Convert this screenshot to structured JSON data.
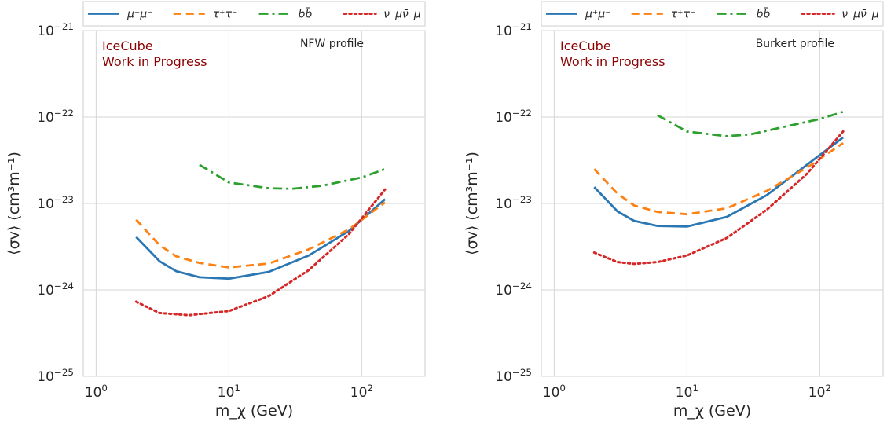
{
  "chart_data": [
    {
      "type": "line",
      "title": "",
      "annotation": "NFW profile",
      "watermark": [
        "IceCube",
        "Work in Progress"
      ],
      "xlabel": "m_χ (GeV)",
      "ylabel": "⟨σv⟩ (cm³m⁻¹)",
      "xscale": "log",
      "yscale": "log",
      "xlim": [
        0.8,
        300
      ],
      "ylim": [
        1e-25,
        1e-21
      ],
      "xticks": [
        {
          "value": 1,
          "base": "10",
          "exp": "0"
        },
        {
          "value": 10,
          "base": "10",
          "exp": "1"
        },
        {
          "value": 100,
          "base": "10",
          "exp": "2"
        }
      ],
      "yticks": [
        {
          "value": 1e-25,
          "base": "10",
          "exp": "−25"
        },
        {
          "value": 1e-24,
          "base": "10",
          "exp": "−24"
        },
        {
          "value": 1e-23,
          "base": "10",
          "exp": "−23"
        },
        {
          "value": 1e-22,
          "base": "10",
          "exp": "−22"
        },
        {
          "value": 1e-21,
          "base": "10",
          "exp": "−21"
        }
      ],
      "grid": true,
      "legend": "top (outside, single row)",
      "series": [
        {
          "name": "μ⁺μ⁻",
          "style": "solid",
          "color": "#2a77b4",
          "x": [
            2,
            3,
            4,
            6,
            10,
            20,
            40,
            80,
            150
          ],
          "y": [
            4.1e-24,
            2.15e-24,
            1.65e-24,
            1.4e-24,
            1.35e-24,
            1.62e-24,
            2.5e-24,
            4.8e-24,
            1.12e-23
          ]
        },
        {
          "name": "τ⁺τ⁻",
          "style": "dashed",
          "color": "#fd8012",
          "x": [
            2,
            3,
            4,
            6,
            10,
            20,
            40,
            80,
            150
          ],
          "y": [
            6.5e-24,
            3.3e-24,
            2.45e-24,
            2.05e-24,
            1.82e-24,
            2.02e-24,
            2.95e-24,
            5e-24,
            1.03e-23
          ]
        },
        {
          "name": "bb̄",
          "style": "dashdot",
          "color": "#2ca02c",
          "x": [
            6,
            10,
            20,
            30,
            50,
            100,
            150
          ],
          "y": [
            2.8e-23,
            1.75e-23,
            1.5e-23,
            1.48e-23,
            1.6e-23,
            2e-23,
            2.5e-23
          ]
        },
        {
          "name": "ν_μν̄_μ",
          "style": "dotted",
          "color": "#d62728",
          "x": [
            2,
            3,
            5,
            10,
            20,
            40,
            80,
            150
          ],
          "y": [
            7.3e-25,
            5.4e-25,
            5.1e-25,
            5.7e-25,
            8.5e-25,
            1.7e-24,
            4.4e-24,
            1.45e-23
          ]
        }
      ]
    },
    {
      "type": "line",
      "title": "",
      "annotation": "Burkert profile",
      "watermark": [
        "IceCube",
        "Work in Progress"
      ],
      "xlabel": "m_χ (GeV)",
      "ylabel": "⟨σv⟩ (cm³m⁻¹)",
      "xscale": "log",
      "yscale": "log",
      "xlim": [
        0.8,
        300
      ],
      "ylim": [
        1e-25,
        1e-21
      ],
      "xticks": [
        {
          "value": 1,
          "base": "10",
          "exp": "0"
        },
        {
          "value": 10,
          "base": "10",
          "exp": "1"
        },
        {
          "value": 100,
          "base": "10",
          "exp": "2"
        }
      ],
      "yticks": [
        {
          "value": 1e-25,
          "base": "10",
          "exp": "−25"
        },
        {
          "value": 1e-24,
          "base": "10",
          "exp": "−24"
        },
        {
          "value": 1e-23,
          "base": "10",
          "exp": "−23"
        },
        {
          "value": 1e-22,
          "base": "10",
          "exp": "−22"
        },
        {
          "value": 1e-21,
          "base": "10",
          "exp": "−21"
        }
      ],
      "grid": true,
      "legend": "top (outside, single row)",
      "series": [
        {
          "name": "μ⁺μ⁻",
          "style": "solid",
          "color": "#2a77b4",
          "x": [
            2,
            3,
            4,
            6,
            10,
            20,
            40,
            80,
            150
          ],
          "y": [
            1.55e-23,
            8.1e-24,
            6.3e-24,
            5.5e-24,
            5.4e-24,
            7e-24,
            1.25e-23,
            2.8e-23,
            5.8e-23
          ]
        },
        {
          "name": "τ⁺τ⁻",
          "style": "dashed",
          "color": "#fd8012",
          "x": [
            2,
            3,
            4,
            6,
            10,
            20,
            40,
            80,
            150
          ],
          "y": [
            2.5e-23,
            1.3e-23,
            9.5e-24,
            8e-24,
            7.5e-24,
            8.8e-24,
            1.4e-23,
            2.6e-23,
            5e-23
          ]
        },
        {
          "name": "bb̄",
          "style": "dashdot",
          "color": "#2ca02c",
          "x": [
            6,
            10,
            20,
            30,
            50,
            100,
            150
          ],
          "y": [
            1.05e-22,
            6.8e-23,
            6e-23,
            6.3e-23,
            7.5e-23,
            9.5e-23,
            1.15e-22
          ]
        },
        {
          "name": "ν_μν̄_μ",
          "style": "dotted",
          "color": "#d62728",
          "x": [
            2,
            3,
            4,
            6,
            10,
            20,
            40,
            80,
            150
          ],
          "y": [
            2.7e-24,
            2.1e-24,
            2e-24,
            2.1e-24,
            2.5e-24,
            4e-24,
            8.5e-24,
            2.2e-23,
            6.8e-23
          ]
        }
      ]
    }
  ]
}
